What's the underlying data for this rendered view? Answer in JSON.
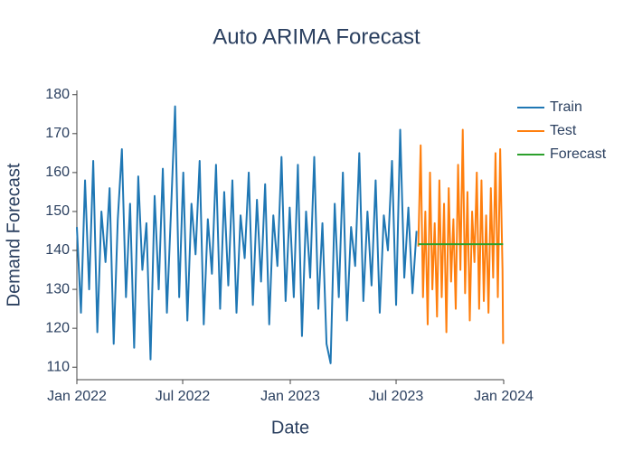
{
  "chart_data": {
    "type": "line",
    "title": "Auto ARIMA Forecast",
    "xlabel": "Date",
    "ylabel": "Demand Forecast",
    "xlim": [
      "2022-01-01",
      "2024-01-01"
    ],
    "xticks": [
      {
        "value": "2022-01-01",
        "label": "Jan 2022"
      },
      {
        "value": "2022-07-01",
        "label": "Jul 2022"
      },
      {
        "value": "2023-01-01",
        "label": "Jan 2023"
      },
      {
        "value": "2023-07-01",
        "label": "Jul 2023"
      },
      {
        "value": "2024-01-01",
        "label": "Jan 2024"
      }
    ],
    "ylim": [
      106.8,
      181.1
    ],
    "yticks": [
      110,
      120,
      130,
      140,
      150,
      160,
      170,
      180
    ],
    "grid": false,
    "legend": "right",
    "series": [
      {
        "name": "Train",
        "color": "#1f77b4",
        "x": [
          "2022-01-01",
          "2022-01-08",
          "2022-01-15",
          "2022-01-22",
          "2022-01-29",
          "2022-02-05",
          "2022-02-12",
          "2022-02-19",
          "2022-02-26",
          "2022-03-05",
          "2022-03-12",
          "2022-03-19",
          "2022-03-26",
          "2022-04-02",
          "2022-04-09",
          "2022-04-16",
          "2022-04-23",
          "2022-04-30",
          "2022-05-07",
          "2022-05-14",
          "2022-05-21",
          "2022-05-28",
          "2022-06-04",
          "2022-06-11",
          "2022-06-18",
          "2022-06-25",
          "2022-07-02",
          "2022-07-09",
          "2022-07-16",
          "2022-07-23",
          "2022-07-30",
          "2022-08-06",
          "2022-08-13",
          "2022-08-20",
          "2022-08-27",
          "2022-09-03",
          "2022-09-10",
          "2022-09-17",
          "2022-09-24",
          "2022-10-01",
          "2022-10-08",
          "2022-10-15",
          "2022-10-22",
          "2022-10-29",
          "2022-11-05",
          "2022-11-12",
          "2022-11-19",
          "2022-11-26",
          "2022-12-03",
          "2022-12-10",
          "2022-12-17",
          "2022-12-24",
          "2022-12-31",
          "2023-01-07",
          "2023-01-14",
          "2023-01-21",
          "2023-01-28",
          "2023-02-04",
          "2023-02-11",
          "2023-02-18",
          "2023-02-25",
          "2023-03-04",
          "2023-03-11",
          "2023-03-18",
          "2023-03-25",
          "2023-04-01",
          "2023-04-08",
          "2023-04-15",
          "2023-04-22",
          "2023-04-29",
          "2023-05-06",
          "2023-05-13",
          "2023-05-20",
          "2023-05-27",
          "2023-06-03",
          "2023-06-10",
          "2023-06-17",
          "2023-06-24",
          "2023-07-01",
          "2023-07-08",
          "2023-07-15",
          "2023-07-22",
          "2023-07-29",
          "2023-08-05"
        ],
        "values": [
          146,
          124,
          158,
          130,
          163,
          119,
          150,
          137,
          156,
          116,
          148,
          166,
          128,
          152,
          115,
          159,
          135,
          147,
          112,
          154,
          130,
          161,
          124,
          150,
          177,
          128,
          160,
          122,
          152,
          139,
          163,
          121,
          148,
          134,
          162,
          125,
          155,
          131,
          158,
          124,
          149,
          138,
          160,
          126,
          153,
          132,
          157,
          121,
          149,
          136,
          164,
          127,
          151,
          128,
          162,
          118,
          150,
          133,
          164,
          125,
          147,
          116,
          111,
          152,
          128,
          160,
          122,
          146,
          136,
          165,
          127,
          150,
          131,
          158,
          124,
          149,
          140,
          163,
          126,
          171,
          133,
          151,
          129,
          145
        ]
      },
      {
        "name": "Test",
        "color": "#ff7f0e",
        "x": [
          "2023-08-08",
          "2023-08-12",
          "2023-08-16",
          "2023-08-20",
          "2023-08-24",
          "2023-08-28",
          "2023-09-01",
          "2023-09-05",
          "2023-09-09",
          "2023-09-13",
          "2023-09-17",
          "2023-09-21",
          "2023-09-25",
          "2023-09-29",
          "2023-10-03",
          "2023-10-07",
          "2023-10-11",
          "2023-10-15",
          "2023-10-19",
          "2023-10-23",
          "2023-10-27",
          "2023-10-31",
          "2023-11-04",
          "2023-11-08",
          "2023-11-12",
          "2023-11-16",
          "2023-11-20",
          "2023-11-24",
          "2023-11-28",
          "2023-12-02",
          "2023-12-06",
          "2023-12-10",
          "2023-12-14",
          "2023-12-18",
          "2023-12-22",
          "2023-12-26",
          "2023-12-30",
          "2023-12-31"
        ],
        "values": [
          141,
          167,
          128,
          150,
          121,
          160,
          130,
          147,
          123,
          158,
          128,
          152,
          119,
          156,
          132,
          148,
          125,
          162,
          135,
          171,
          129,
          155,
          122,
          150,
          137,
          160,
          125,
          158,
          127,
          149,
          124,
          156,
          133,
          165,
          128,
          166,
          135,
          116
        ]
      },
      {
        "name": "Forecast",
        "color": "#2ca02c",
        "x": [
          "2023-08-08",
          "2023-12-31"
        ],
        "values": [
          141.6,
          141.6
        ]
      }
    ]
  }
}
